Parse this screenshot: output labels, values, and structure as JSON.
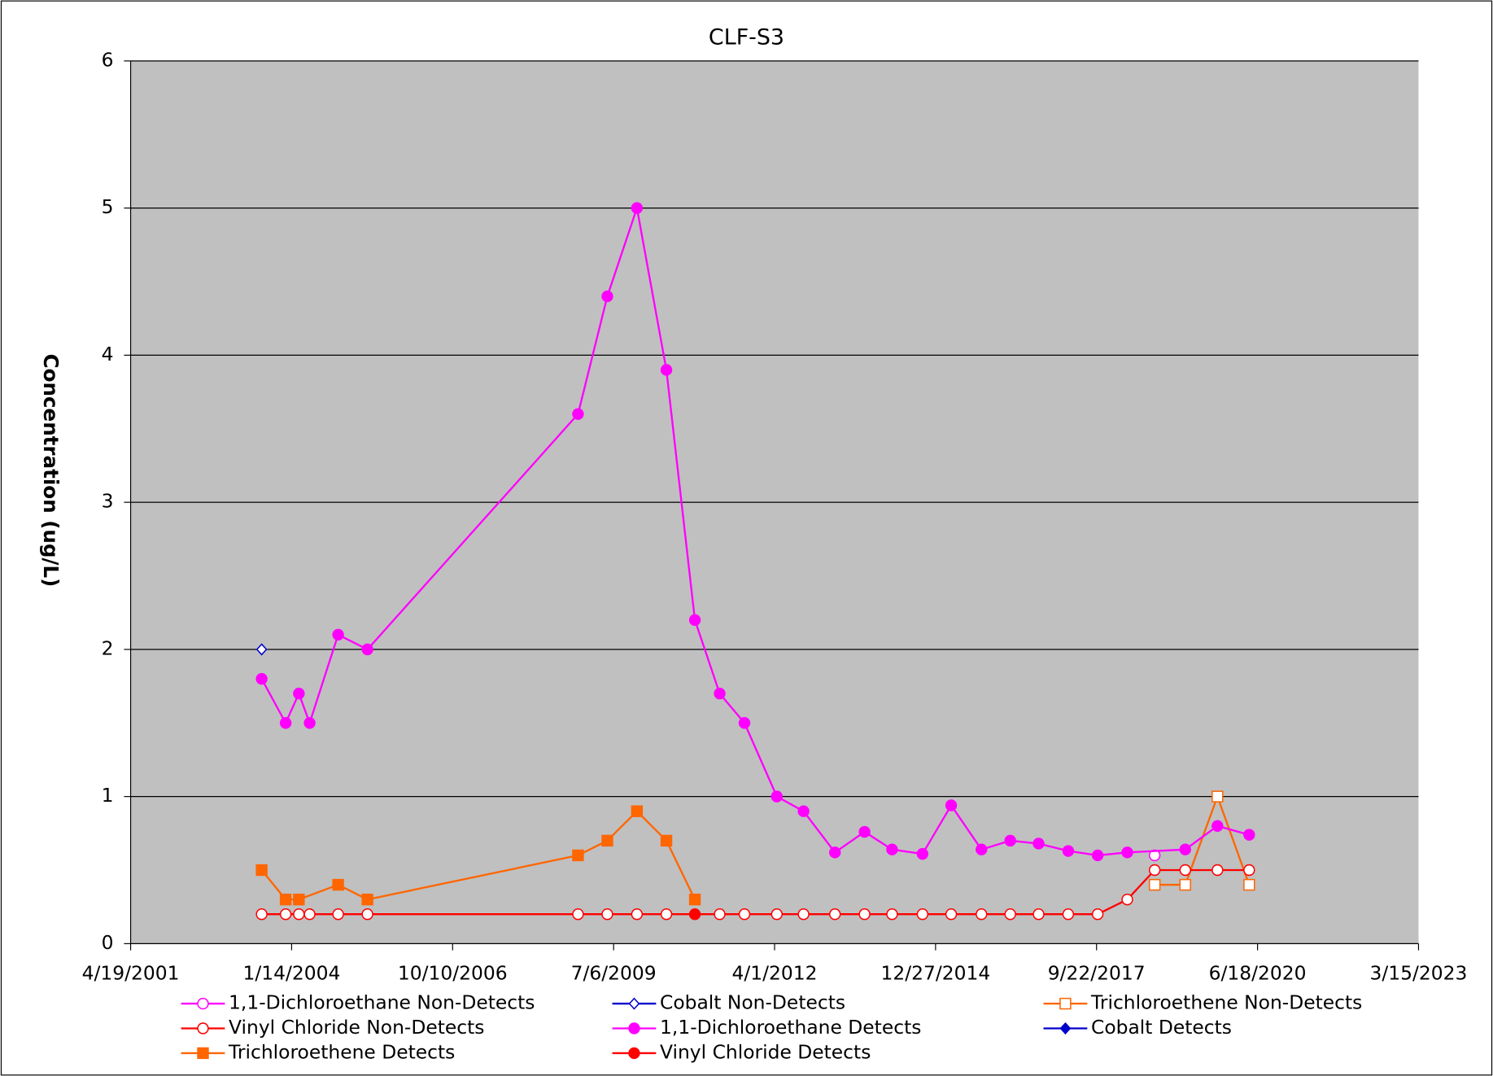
{
  "chart_data": {
    "type": "line",
    "title": "CLF-S3",
    "y_label": "Concentration (ug/L)",
    "xlim": [
      "2001-04-19",
      "2023-03-15"
    ],
    "xticks": [
      {
        "value": "2001-04-19",
        "label": "4/19/2001"
      },
      {
        "value": "2004-01-14",
        "label": "1/14/2004"
      },
      {
        "value": "2006-10-10",
        "label": "10/10/2006"
      },
      {
        "value": "2009-07-06",
        "label": "7/6/2009"
      },
      {
        "value": "2012-04-01",
        "label": "4/1/2012"
      },
      {
        "value": "2014-12-27",
        "label": "12/27/2014"
      },
      {
        "value": "2017-09-22",
        "label": "9/22/2017"
      },
      {
        "value": "2020-06-18",
        "label": "6/18/2020"
      },
      {
        "value": "2023-03-15",
        "label": "3/15/2023"
      }
    ],
    "ylim": [
      0,
      6
    ],
    "yticks": [
      0,
      1,
      2,
      3,
      4,
      5,
      6
    ],
    "grid": true,
    "series": [
      {
        "name": "1,1-Dichloroethane Non-Detects",
        "color": "#ff00ff",
        "marker": "circle-open",
        "x": [
          "2018-09-18"
        ],
        "values": [
          0.6
        ]
      },
      {
        "name": "Cobalt Non-Detects",
        "color": "#0000cc",
        "marker": "diamond-open",
        "x": [
          "2003-07-12"
        ],
        "values": [
          2.0
        ]
      },
      {
        "name": "Trichloroethene Non-Detects",
        "color": "#ff6600",
        "marker": "square-open",
        "x": [
          "2018-09-18",
          "2019-03-27",
          "2019-10-13",
          "2020-04-27"
        ],
        "values": [
          0.4,
          0.4,
          1.0,
          0.4
        ]
      },
      {
        "name": "Vinyl Chloride Non-Detects",
        "color": "#ff0000",
        "marker": "circle-open",
        "x": [
          "2003-07-12",
          "2003-12-08",
          "2004-02-28",
          "2004-05-05",
          "2004-10-29",
          "2005-04-29",
          "2008-11-27",
          "2009-05-28",
          "2009-11-28",
          "2010-05-30",
          "2011-04-26",
          "2011-09-27",
          "2012-04-15",
          "2012-09-28",
          "2013-04-11",
          "2013-10-12",
          "2014-04-01",
          "2014-10-07",
          "2015-04-03",
          "2015-10-08",
          "2016-04-04",
          "2016-09-27",
          "2017-03-30",
          "2017-09-29",
          "2018-04-01",
          "2018-09-18",
          "2019-03-27",
          "2019-10-13",
          "2020-04-27"
        ],
        "values": [
          0.2,
          0.2,
          0.2,
          0.2,
          0.2,
          0.2,
          0.2,
          0.2,
          0.2,
          0.2,
          0.2,
          0.2,
          0.2,
          0.2,
          0.2,
          0.2,
          0.2,
          0.2,
          0.2,
          0.2,
          0.2,
          0.2,
          0.2,
          0.2,
          0.3,
          0.5,
          0.5,
          0.5,
          0.5
        ]
      },
      {
        "name": "1,1-Dichloroethane Detects",
        "color": "#ff00ff",
        "marker": "circle",
        "x": [
          "2003-07-12",
          "2003-12-08",
          "2004-02-28",
          "2004-05-05",
          "2004-10-29",
          "2005-04-29",
          "2008-11-27",
          "2009-05-28",
          "2009-11-28",
          "2010-05-30",
          "2010-11-23",
          "2011-04-26",
          "2011-09-27",
          "2012-04-15",
          "2012-09-28",
          "2013-04-11",
          "2013-10-12",
          "2014-04-01",
          "2014-10-07",
          "2015-04-03",
          "2015-10-08",
          "2016-04-04",
          "2016-09-27",
          "2017-03-30",
          "2017-09-29",
          "2018-04-01",
          "2019-03-27",
          "2019-10-13",
          "2020-04-27"
        ],
        "values": [
          1.8,
          1.5,
          1.7,
          1.5,
          2.1,
          2.0,
          3.6,
          4.4,
          5.0,
          3.9,
          2.2,
          1.7,
          1.5,
          1.0,
          0.9,
          0.62,
          0.76,
          0.64,
          0.61,
          0.94,
          0.64,
          0.7,
          0.68,
          0.63,
          0.6,
          0.62,
          0.64,
          0.8,
          0.74
        ]
      },
      {
        "name": "Cobalt Detects",
        "color": "#0000cc",
        "marker": "diamond",
        "x": [],
        "values": []
      },
      {
        "name": "Trichloroethene Detects",
        "color": "#ff6600",
        "marker": "square",
        "x": [
          "2003-07-12",
          "2003-12-08",
          "2004-02-28",
          "2004-10-29",
          "2005-04-29",
          "2008-11-27",
          "2009-05-28",
          "2009-11-28",
          "2010-05-30",
          "2010-11-23"
        ],
        "values": [
          0.5,
          0.3,
          0.3,
          0.4,
          0.3,
          0.6,
          0.7,
          0.9,
          0.7,
          0.3
        ]
      },
      {
        "name": "Vinyl Chloride Detects",
        "color": "#ff0000",
        "marker": "circle",
        "x": [
          "2010-11-23"
        ],
        "values": [
          0.2
        ]
      }
    ]
  }
}
